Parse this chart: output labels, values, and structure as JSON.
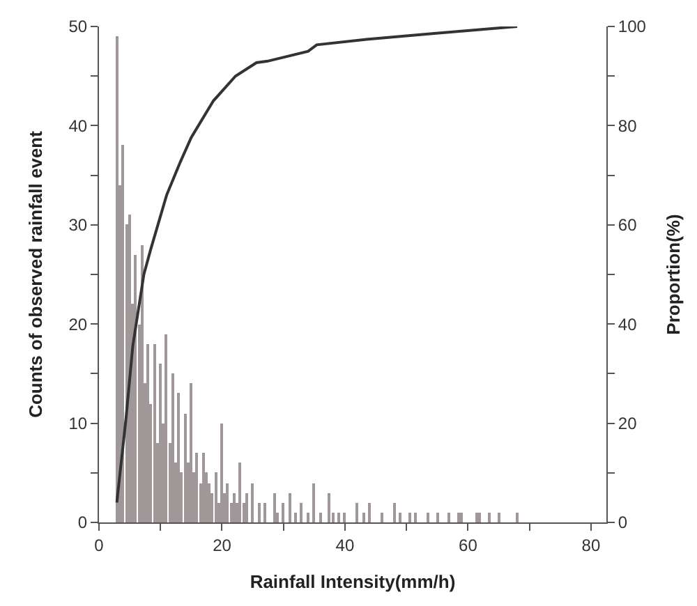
{
  "chart_data": {
    "type": "bar",
    "xlabel": "Rainfall Intensity(mm/h)",
    "ylabel": "Counts of observed rainfall event",
    "y2label": "Proportion(%)",
    "xlim": [
      0,
      82.5
    ],
    "xticks": [
      0,
      {
        "value": 10,
        "label": null
      },
      20,
      {
        "value": 30,
        "label": null
      },
      40,
      {
        "value": 50,
        "label": null
      },
      60,
      {
        "value": 70,
        "label": null
      },
      80
    ],
    "ylim": [
      0,
      50
    ],
    "yticks": [
      0,
      {
        "value": 5,
        "label": null
      },
      10,
      {
        "value": 15,
        "label": null
      },
      20,
      {
        "value": 25,
        "label": null
      },
      30,
      {
        "value": 35,
        "label": null
      },
      40,
      {
        "value": 45,
        "label": null
      },
      50
    ],
    "y2lim": [
      0,
      100
    ],
    "y2ticks": [
      0,
      {
        "value": 10,
        "label": null
      },
      20,
      {
        "value": 30,
        "label": null
      },
      40,
      {
        "value": 50,
        "label": null
      },
      60,
      {
        "value": 70,
        "label": null
      },
      80,
      {
        "value": 90,
        "label": null
      },
      100
    ],
    "series": [
      {
        "color": "#a09898",
        "x": [
          3.0,
          3.5,
          4.0,
          4.5,
          5.0,
          5.5,
          6.0,
          6.5,
          7.0,
          7.5,
          8.0,
          8.5,
          9.0,
          9.5,
          10.0,
          10.5,
          11.0,
          11.5,
          12.0,
          12.5,
          13.0,
          13.5,
          14.0,
          14.5,
          15.0,
          15.5,
          16.0,
          16.5,
          17.0,
          17.5,
          18.0,
          18.5,
          19.0,
          19.5,
          20.0,
          20.5,
          21,
          21.5,
          22,
          22.5,
          23,
          23.5,
          24,
          25,
          26,
          27,
          28.5,
          29,
          30,
          31,
          32,
          33,
          34,
          35,
          36,
          37.5,
          38,
          39,
          40,
          42,
          43,
          44,
          46,
          48,
          49,
          50.5,
          51.5,
          53.5,
          55,
          57,
          58.5,
          59,
          61.5,
          62,
          63.5,
          65,
          68
        ],
        "values": [
          49,
          34,
          38,
          30,
          31,
          22,
          27,
          20,
          28,
          14,
          18,
          12,
          18,
          8,
          16,
          10,
          19,
          8,
          15,
          6,
          13,
          5,
          11,
          6,
          14,
          5,
          7,
          4,
          7,
          5,
          4,
          3,
          5,
          2,
          10,
          3,
          4,
          2,
          3,
          2,
          6,
          2,
          3,
          4,
          2,
          2,
          3,
          1,
          2,
          3,
          1,
          2,
          1,
          4,
          1,
          3,
          1,
          1,
          1,
          2,
          1,
          2,
          1,
          2,
          1,
          1,
          1,
          1,
          1,
          1,
          1,
          1,
          1,
          1,
          1,
          1,
          1
        ]
      },
      {
        "type": "line",
        "axis": "y2",
        "color": "#333333",
        "line_style": "solid",
        "marker": "none",
        "x": [
          2.9,
          4.4,
          5.5,
          7.3,
          8.4,
          11,
          13.2,
          15,
          18.6,
          22.2,
          25.6,
          27.4,
          34,
          35.4,
          43.5,
          54.5,
          68
        ],
        "values": [
          4,
          21,
          35.6,
          50,
          55,
          66,
          72.6,
          77.6,
          85,
          90,
          92.7,
          93,
          95,
          96.3,
          97.4,
          98.6,
          100
        ]
      }
    ]
  }
}
